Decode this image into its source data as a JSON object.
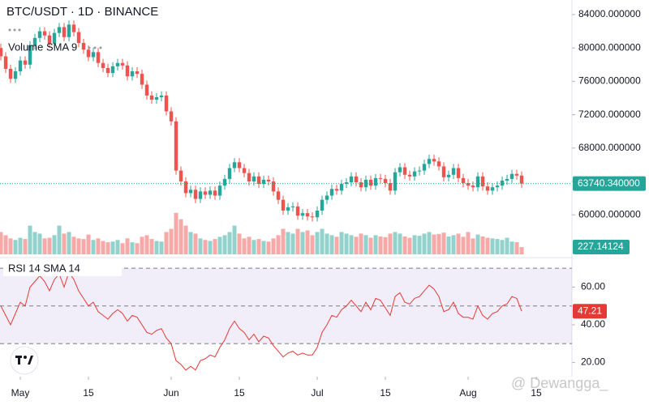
{
  "chart_data": {
    "type": "candlestick",
    "title": "BTC/USDT · 1D · BINANCE",
    "x": [
      -4,
      -3,
      -2,
      -1,
      0,
      1,
      2,
      3,
      4,
      5,
      6,
      7,
      8,
      9,
      10,
      11,
      12,
      13,
      14,
      15,
      16,
      17,
      18,
      19,
      20,
      21,
      22,
      23,
      24,
      25,
      26,
      27,
      28,
      29,
      30,
      31,
      32,
      33,
      34,
      35,
      36,
      37,
      38,
      39,
      40,
      41,
      42,
      43,
      44,
      45,
      46,
      47,
      48,
      49,
      50,
      51,
      52,
      53,
      54,
      55,
      56,
      57,
      58,
      59,
      60,
      61,
      62,
      63,
      64,
      65,
      66,
      67,
      68,
      69,
      70,
      71,
      72,
      73,
      74,
      75,
      76,
      77,
      78,
      79,
      80,
      81,
      82,
      83,
      84,
      85,
      86,
      87,
      88,
      89,
      90,
      91,
      92,
      93,
      94,
      95,
      96,
      97,
      98,
      99,
      100,
      101,
      102,
      103
    ],
    "xlim": [
      -4.17,
      113.33
    ],
    "xticks": [
      {
        "value": 0,
        "label": "May"
      },
      {
        "value": 14,
        "label": "15"
      },
      {
        "value": 31,
        "label": "Jun"
      },
      {
        "value": 45,
        "label": "15"
      },
      {
        "value": 61,
        "label": "Jul"
      },
      {
        "value": 75,
        "label": "15"
      },
      {
        "value": 92,
        "label": "Aug"
      },
      {
        "value": 106,
        "label": "15"
      }
    ],
    "open": [
      80000,
      79000,
      77500,
      76300,
      77200,
      78500,
      78000,
      80300,
      81200,
      82000,
      81500,
      80500,
      81800,
      82500,
      81300,
      82800,
      81900,
      80600,
      79800,
      78900,
      79500,
      78200,
      77600,
      77000,
      77800,
      78200,
      77900,
      76600,
      77200,
      76900,
      75600,
      74300,
      73800,
      74100,
      74300,
      72400,
      71200,
      65300,
      64000,
      62600,
      63000,
      61900,
      62800,
      62400,
      62900,
      62300,
      63500,
      64300,
      65600,
      66300,
      65600,
      65000,
      64000,
      64600,
      63700,
      64200,
      64000,
      62800,
      61800,
      60500,
      60900,
      61000,
      59900,
      60200,
      59800,
      59700,
      60500,
      61800,
      62300,
      63100,
      62900,
      63700,
      63900,
      64600,
      63900,
      63300,
      64200,
      63500,
      64400,
      64300,
      63800,
      62900,
      65100,
      65700,
      64800,
      64600,
      65200,
      65300,
      66100,
      66700,
      66400,
      65800,
      64500,
      64800,
      65600,
      64400,
      63800,
      63500,
      63300,
      64600,
      63400,
      62900,
      63300,
      63500,
      64100,
      64300,
      64900,
      64700
    ],
    "high": [
      80500,
      79500,
      78000,
      77700,
      79000,
      79000,
      80800,
      81700,
      82500,
      82500,
      82000,
      82300,
      83000,
      83000,
      83300,
      83300,
      82400,
      81100,
      80300,
      80000,
      80000,
      78700,
      78100,
      78300,
      78700,
      78700,
      78400,
      77700,
      77700,
      77400,
      76100,
      74800,
      74600,
      74800,
      74800,
      72900,
      71700,
      65800,
      64500,
      63500,
      63500,
      63300,
      63300,
      63400,
      63400,
      64000,
      64800,
      66100,
      66800,
      66800,
      66100,
      65500,
      65100,
      65100,
      64700,
      64700,
      64500,
      63300,
      62300,
      61400,
      61500,
      61500,
      60700,
      60700,
      60300,
      61000,
      62300,
      62800,
      63600,
      63600,
      64200,
      64400,
      65100,
      65100,
      64400,
      64700,
      64700,
      64900,
      64900,
      64800,
      64300,
      65600,
      66200,
      66200,
      65300,
      65700,
      65800,
      66600,
      67200,
      67200,
      66900,
      66300,
      65300,
      66100,
      66100,
      64900,
      64300,
      64000,
      65100,
      65100,
      63900,
      63800,
      64000,
      64600,
      64800,
      65400,
      65400,
      65200
    ],
    "low": [
      78500,
      77000,
      75800,
      75800,
      76700,
      77500,
      77500,
      79800,
      80700,
      81000,
      80000,
      80000,
      81300,
      80800,
      80800,
      81400,
      80100,
      79300,
      78400,
      78400,
      77700,
      77100,
      76500,
      76500,
      77300,
      77400,
      76100,
      76100,
      76400,
      75100,
      73800,
      73300,
      73300,
      73600,
      71900,
      70700,
      64800,
      63500,
      62100,
      62100,
      61400,
      61400,
      61900,
      61900,
      61800,
      61800,
      63000,
      63800,
      65100,
      65100,
      64500,
      63500,
      63500,
      63200,
      63200,
      63500,
      62300,
      61300,
      60000,
      60000,
      60400,
      59400,
      59400,
      59300,
      59200,
      59200,
      60000,
      61300,
      61800,
      62400,
      62400,
      63200,
      63400,
      63400,
      62800,
      62800,
      63000,
      63000,
      63800,
      63300,
      62400,
      62400,
      64600,
      64300,
      64100,
      64100,
      64700,
      64800,
      65600,
      65900,
      65300,
      64000,
      64000,
      64300,
      63900,
      63300,
      63000,
      62800,
      62800,
      62900,
      62400,
      62400,
      62800,
      63000,
      63600,
      63800,
      64200,
      63200
    ],
    "close": [
      79000,
      77500,
      76300,
      77200,
      78500,
      78000,
      80300,
      81200,
      82000,
      81500,
      80500,
      81800,
      82500,
      81300,
      82800,
      81900,
      80600,
      79800,
      78900,
      79500,
      78200,
      77600,
      77000,
      77800,
      78200,
      77900,
      76600,
      77200,
      76900,
      75600,
      74300,
      73800,
      74100,
      74300,
      72400,
      71200,
      65300,
      64000,
      62600,
      63000,
      61900,
      62800,
      62400,
      62900,
      62300,
      63500,
      64300,
      65600,
      66300,
      65600,
      65000,
      64000,
      64600,
      63700,
      64200,
      64000,
      62800,
      61800,
      60500,
      60900,
      61000,
      59900,
      60200,
      59800,
      59700,
      60500,
      61800,
      62300,
      63100,
      62900,
      63700,
      63900,
      64600,
      63900,
      63300,
      64200,
      63500,
      64400,
      64300,
      63800,
      62900,
      65100,
      65700,
      64800,
      64600,
      65200,
      65300,
      66100,
      66700,
      66400,
      65800,
      64500,
      64800,
      65600,
      64400,
      63800,
      63500,
      63300,
      64600,
      63400,
      62900,
      63300,
      63500,
      64100,
      64300,
      64900,
      64700,
      63740.34
    ],
    "close_label": "63740.340000",
    "ylim": [
      55260,
      85750
    ],
    "yticks": [
      {
        "value": 84000,
        "label": "84000.000000"
      },
      {
        "value": 80000,
        "label": "80000.000000"
      },
      {
        "value": 76000,
        "label": "76000.000000"
      },
      {
        "value": 72000,
        "label": "72000.000000"
      },
      {
        "value": 68000,
        "label": "68000.000000"
      },
      {
        "value": 64000,
        "label": "64000.000000"
      },
      {
        "value": 60000,
        "label": "60000.000000"
      }
    ],
    "up_color": "#26a69a",
    "down_color": "#ef5350",
    "volume": {
      "title": "Volume SMA 9",
      "values": [
        700,
        600,
        500,
        450,
        520,
        480,
        900,
        700,
        650,
        500,
        520,
        600,
        900,
        650,
        700,
        550,
        500,
        480,
        620,
        450,
        500,
        420,
        380,
        400,
        450,
        350,
        500,
        380,
        350,
        550,
        600,
        480,
        420,
        400,
        700,
        800,
        1300,
        1100,
        900,
        700,
        650,
        500,
        450,
        420,
        480,
        550,
        600,
        700,
        900,
        650,
        500,
        550,
        450,
        480,
        420,
        400,
        500,
        600,
        800,
        700,
        650,
        800,
        700,
        750,
        600,
        700,
        800,
        650,
        600,
        550,
        700,
        650,
        600,
        550,
        650,
        600,
        520,
        600,
        560,
        540,
        650,
        700,
        650,
        560,
        520,
        600,
        580,
        650,
        700,
        620,
        640,
        680,
        560,
        600,
        650,
        550,
        700,
        500,
        620,
        560,
        520,
        500,
        480,
        450,
        520,
        400,
        380,
        227.14124
      ],
      "ylim": [
        0,
        1600
      ],
      "value_label": "227.14124"
    },
    "rsi": {
      "title": "RSI 14 SMA 14",
      "values": [
        50,
        45,
        40,
        46,
        52,
        50,
        60,
        63,
        66,
        63,
        58,
        64,
        67,
        60,
        68,
        64,
        58,
        54,
        50,
        52,
        47,
        45,
        43,
        46,
        48,
        46,
        42,
        45,
        44,
        40,
        36,
        35,
        37,
        38,
        33,
        30,
        21,
        19,
        16,
        18,
        16,
        21,
        22,
        24,
        23,
        28,
        32,
        38,
        42,
        38,
        36,
        32,
        35,
        31,
        34,
        33,
        29,
        26,
        23,
        25,
        26,
        24,
        25,
        24,
        24,
        28,
        36,
        40,
        45,
        44,
        48,
        50,
        53,
        50,
        47,
        52,
        48,
        54,
        53,
        49,
        45,
        55,
        57,
        52,
        51,
        54,
        55,
        58,
        61,
        59,
        55,
        47,
        48,
        52,
        46,
        44,
        44,
        43,
        50,
        45,
        43,
        46,
        47,
        50,
        51,
        55,
        54,
        47.21
      ],
      "ylim": [
        13.8,
        74.8
      ],
      "yticks": [
        {
          "value": 60,
          "label": "60.00"
        },
        {
          "value": 40,
          "label": "40.00"
        },
        {
          "value": 20,
          "label": "20.00"
        }
      ],
      "levels": [
        70,
        50,
        30
      ],
      "value_label": "47.21",
      "color": "#e53935"
    },
    "watermark": "@ Dewangga_"
  }
}
